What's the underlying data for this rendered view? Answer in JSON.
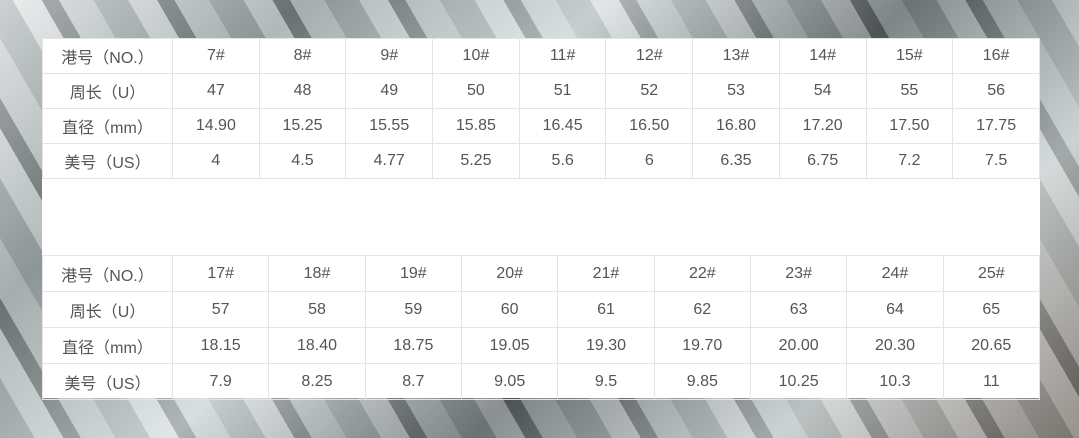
{
  "row_labels": [
    "港号（NO.）",
    "周长（U）",
    "直径（mm）",
    "美号（US）"
  ],
  "table1": {
    "no": [
      "7#",
      "8#",
      "9#",
      "10#",
      "11#",
      "12#",
      "13#",
      "14#",
      "15#",
      "16#"
    ],
    "circumference": [
      "47",
      "48",
      "49",
      "50",
      "51",
      "52",
      "53",
      "54",
      "55",
      "56"
    ],
    "diameter": [
      "14.90",
      "15.25",
      "15.55",
      "15.85",
      "16.45",
      "16.50",
      "16.80",
      "17.20",
      "17.50",
      "17.75"
    ],
    "us": [
      "4",
      "4.5",
      "4.77",
      "5.25",
      "5.6",
      "6",
      "6.35",
      "6.75",
      "7.2",
      "7.5"
    ]
  },
  "table2": {
    "no": [
      "17#",
      "18#",
      "19#",
      "20#",
      "21#",
      "22#",
      "23#",
      "24#",
      "25#"
    ],
    "circumference": [
      "57",
      "58",
      "59",
      "60",
      "61",
      "62",
      "63",
      "64",
      "65"
    ],
    "diameter": [
      "18.15",
      "18.40",
      "18.75",
      "19.05",
      "19.30",
      "19.70",
      "20.00",
      "20.30",
      "20.65"
    ],
    "us": [
      "7.9",
      "8.25",
      "8.7",
      "9.05",
      "9.5",
      "9.85",
      "10.25",
      "10.3",
      "11"
    ]
  }
}
